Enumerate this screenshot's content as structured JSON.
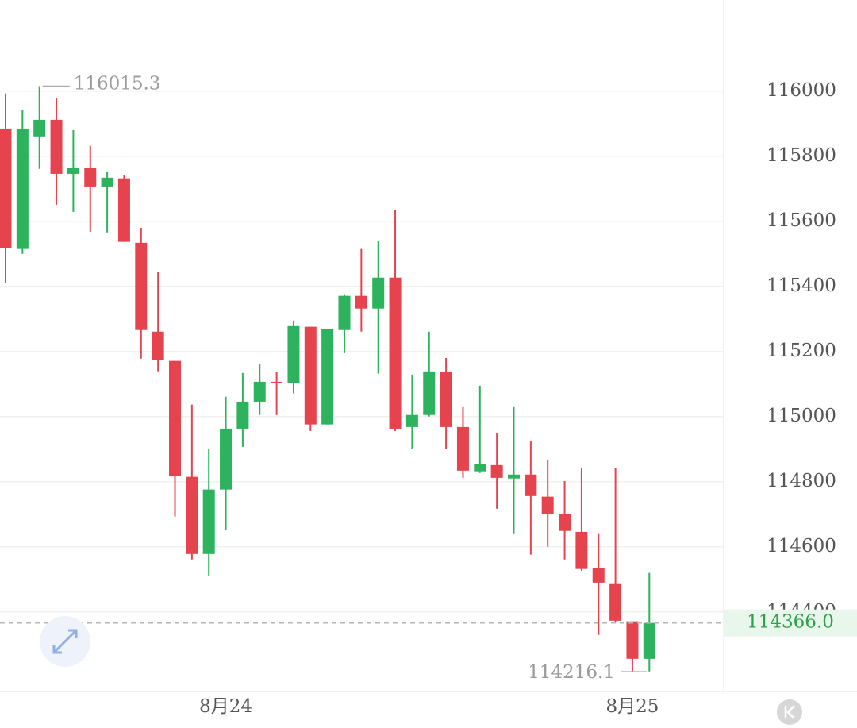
{
  "chart_data": {
    "type": "candlestick",
    "categories": [
      null,
      null,
      null,
      null,
      null,
      null,
      null,
      null,
      null,
      null,
      null,
      null,
      null,
      "8月24",
      null,
      null,
      null,
      null,
      null,
      null,
      null,
      null,
      null,
      null,
      null,
      null,
      null,
      null,
      null,
      null,
      null,
      null,
      null,
      null,
      null,
      null,
      null,
      "8月25",
      null
    ],
    "open": [
      115885,
      115515,
      115861,
      115912,
      115746,
      115763,
      115707,
      115732,
      115534,
      115261,
      115171,
      114815,
      114578,
      114776,
      114963,
      115046,
      115107,
      115102,
      115276,
      114976,
      115266,
      115371,
      115332,
      115427,
      114968,
      115005,
      115137,
      114968,
      114832,
      114851,
      114810,
      114822,
      114754,
      114700,
      114646,
      114534,
      114488,
      114371,
      114256
    ],
    "high": [
      115993,
      115941,
      116015.3,
      115980,
      115880,
      115832,
      115751,
      115741,
      115580,
      115444,
      115171,
      115037,
      114902,
      115061,
      115134,
      115161,
      115137,
      115295,
      115276,
      115268,
      115376,
      115515,
      115541,
      115634,
      115129,
      115261,
      115180,
      115029,
      115095,
      114949,
      115029,
      114924,
      114866,
      114802,
      114841,
      114639,
      114841,
      114371,
      114520
    ],
    "low": [
      115410,
      115500,
      115761,
      115651,
      115629,
      115568,
      115566,
      115537,
      115178,
      115139,
      114693,
      114561,
      114512,
      114651,
      114907,
      115005,
      115005,
      115071,
      114956,
      114976,
      115195,
      115261,
      115132,
      114956,
      114900,
      115000,
      114900,
      114812,
      114827,
      114717,
      114639,
      114576,
      114600,
      114561,
      114527,
      114329,
      114368,
      114216.1,
      114217
    ],
    "close": [
      115517,
      115885,
      115912,
      115746,
      115763,
      115707,
      115734,
      115537,
      115266,
      115173,
      114817,
      114578,
      114776,
      114963,
      115046,
      115107,
      115102,
      115278,
      114976,
      115268,
      115371,
      115332,
      115427,
      114963,
      115005,
      115139,
      114968,
      114834,
      114854,
      114812,
      114822,
      114756,
      114702,
      114649,
      114532,
      114490,
      114373,
      114256,
      114366
    ],
    "up_color": "#2db35d",
    "down_color": "#e5444f",
    "ylim": [
      114158,
      116280
    ],
    "yticks": [
      114400,
      114600,
      114800,
      115000,
      115200,
      115400,
      115600,
      115800,
      116000
    ],
    "grid": true,
    "last_price": {
      "value": 114366,
      "label": "114366.0"
    }
  }
}
